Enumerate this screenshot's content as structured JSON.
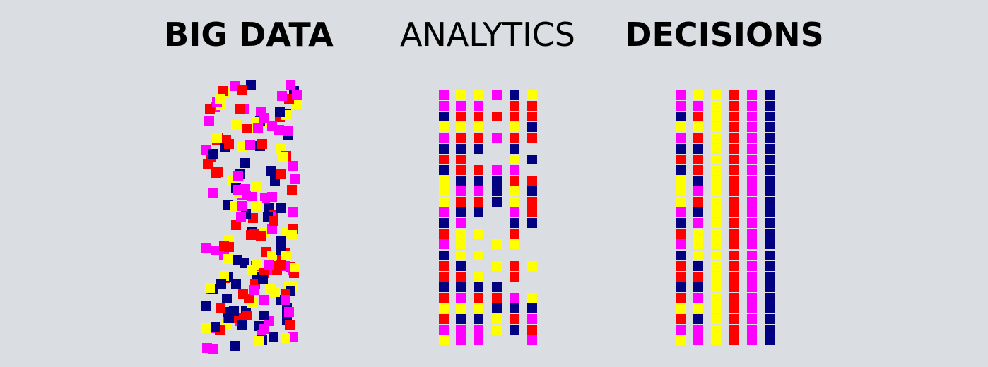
{
  "titles": {
    "big_data": "BIG DATA",
    "analytics": "ANALYTICS",
    "decisions": "DECISIONS"
  },
  "colors": {
    "M": "#ff00ff",
    "Y": "#ffff00",
    "R": "#ff0000",
    "N": "#000080"
  },
  "analytics_columns": [
    "MMNYMNRNYYYMNRMNRRNRYRMY",
    "YMRYRNRRNMRNMYYYNRNMYNMM",
    "YMRYRN.RNMRN.Y.Y.YNRYNMM",
    "M.R.M..MNNN...Y.Y.NRNYY.",
    "NRRYRNYMRYYMNRY.RR.MNRN.",
    "YRRNR.N.RNRRN...Y..YNMRM"
  ],
  "decisions_columns": [
    "MMNYMNRNYYYMNRMNRRNRYRMY",
    "YMRYRNRRNMRNMYYYNRNMYNMM",
    "YYYYYYYYYYYYYYYYYYYYYYYY",
    "RRRRRRRRRRRRRRRRRRRRRRRR",
    "MMMMMMMMMMMMMMMMMMMMMMMM",
    "NNNNNNNNNNNNNNNNNNNNNNNN"
  ]
}
